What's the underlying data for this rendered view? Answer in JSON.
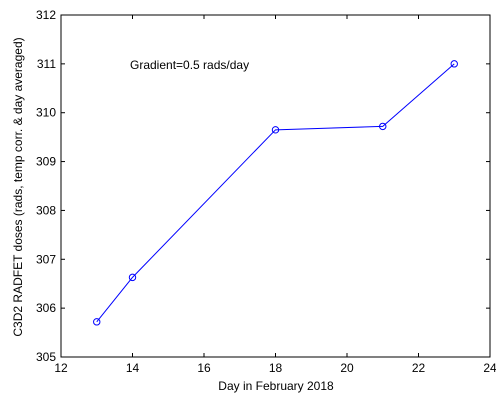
{
  "chart_data": {
    "type": "line",
    "title": "",
    "xlabel": "Day in February 2018",
    "ylabel": "C3D2 RADFET doses (rads, temp corr. & day averaged)",
    "xlim": [
      12,
      24
    ],
    "ylim": [
      305,
      312
    ],
    "xticks": [
      12,
      14,
      16,
      18,
      20,
      22,
      24
    ],
    "yticks": [
      305,
      306,
      307,
      308,
      309,
      310,
      311,
      312
    ],
    "grid": false,
    "legend": "none",
    "annotation": "Gradient=0.5 rads/day",
    "series": [
      {
        "color": "#0000ff",
        "marker": "circle",
        "x": [
          13,
          14,
          18,
          21,
          23
        ],
        "y": [
          305.72,
          306.63,
          309.65,
          309.72,
          311.0
        ]
      }
    ]
  }
}
